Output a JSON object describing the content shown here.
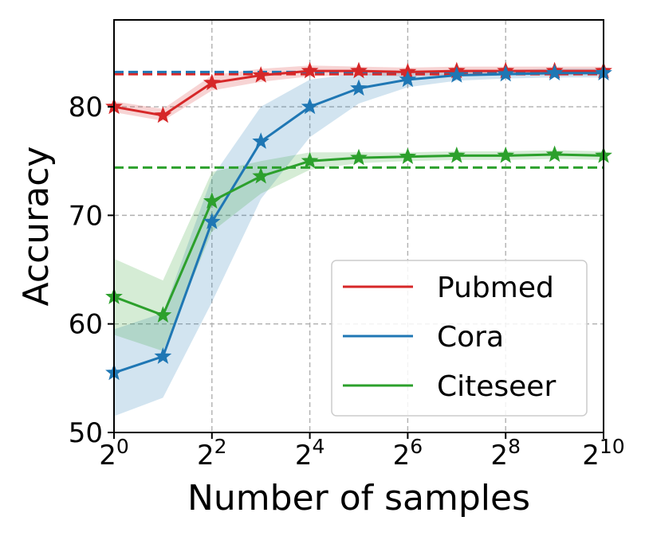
{
  "chart_data": {
    "type": "line",
    "xlabel": "Number of samples",
    "ylabel": "Accuracy",
    "x_exponents": [
      0,
      1,
      2,
      3,
      4,
      5,
      6,
      7,
      8,
      9,
      10
    ],
    "x_ticks": [
      {
        "exp": 0,
        "base": "2",
        "power": "0"
      },
      {
        "exp": 2,
        "base": "2",
        "power": "2"
      },
      {
        "exp": 4,
        "base": "2",
        "power": "4"
      },
      {
        "exp": 6,
        "base": "2",
        "power": "6"
      },
      {
        "exp": 8,
        "base": "2",
        "power": "8"
      },
      {
        "exp": 10,
        "base": "2",
        "power": "10"
      }
    ],
    "xlim": [
      0,
      10
    ],
    "ylim": [
      50,
      88
    ],
    "y_ticks": [
      {
        "value": 50,
        "label": "50"
      },
      {
        "value": 60,
        "label": "60"
      },
      {
        "value": 70,
        "label": "70"
      },
      {
        "value": 80,
        "label": "80"
      }
    ],
    "grid": true,
    "legend_position": "bottom-right",
    "series": [
      {
        "name": "Pubmed",
        "color": "#d62728",
        "values": [
          80.0,
          79.2,
          82.2,
          82.9,
          83.3,
          83.3,
          83.2,
          83.3,
          83.3,
          83.3,
          83.3
        ],
        "lower": [
          79.5,
          78.7,
          81.5,
          82.3,
          82.8,
          82.9,
          82.8,
          82.9,
          82.9,
          82.9,
          82.9
        ],
        "upper": [
          80.5,
          79.8,
          82.9,
          83.5,
          83.8,
          83.7,
          83.6,
          83.7,
          83.7,
          83.7,
          83.7
        ],
        "baseline": 83.0
      },
      {
        "name": "Cora",
        "color": "#1f77b4",
        "values": [
          55.5,
          57.0,
          69.4,
          76.8,
          80.0,
          81.7,
          82.5,
          82.9,
          83.0,
          83.1,
          83.1
        ],
        "lower": [
          51.5,
          53.2,
          62.0,
          71.5,
          77.2,
          80.3,
          81.8,
          82.4,
          82.6,
          82.7,
          82.7
        ],
        "upper": [
          59.5,
          61.0,
          73.5,
          80.0,
          82.5,
          83.1,
          83.2,
          83.4,
          83.4,
          83.5,
          83.5
        ],
        "baseline": 83.2
      },
      {
        "name": "Citeseer",
        "color": "#2ca02c",
        "values": [
          62.5,
          60.8,
          71.3,
          73.6,
          75.0,
          75.3,
          75.4,
          75.5,
          75.5,
          75.6,
          75.5
        ],
        "lower": [
          59.0,
          57.5,
          68.5,
          72.0,
          74.2,
          74.8,
          75.0,
          75.1,
          75.1,
          75.2,
          75.1
        ],
        "upper": [
          66.0,
          64.0,
          74.0,
          75.0,
          75.8,
          75.8,
          75.8,
          75.9,
          75.9,
          76.0,
          75.9
        ],
        "baseline": 74.4
      }
    ]
  }
}
